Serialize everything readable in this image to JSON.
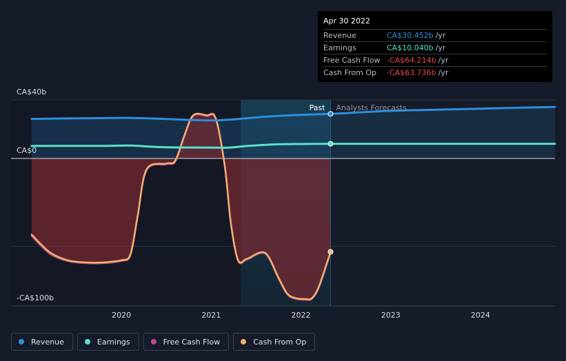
{
  "chart_data": {
    "type": "area",
    "currency_unit": "CA$ billions",
    "y_ticks": [
      {
        "value": 40,
        "label": "CA$40b"
      },
      {
        "value": 0,
        "label": "CA$0"
      },
      {
        "value": -100,
        "label": "-CA$100b"
      }
    ],
    "x_ticks": [
      {
        "value": 2020,
        "label": "2020"
      },
      {
        "value": 2021,
        "label": "2021"
      },
      {
        "value": 2022,
        "label": "2022"
      },
      {
        "value": 2023,
        "label": "2023"
      },
      {
        "value": 2024,
        "label": "2024"
      }
    ],
    "xlim": [
      2018.77,
      2024.83
    ],
    "ylim": [
      -100,
      40
    ],
    "grid": true,
    "past_label": "Past",
    "forecast_label": "Analysts Forecasts",
    "past_end": 2022.33,
    "shade_start": 2021.33,
    "series": [
      {
        "name": "Revenue",
        "color": "#2d8fdc",
        "x": [
          2019.0,
          2019.3,
          2019.6,
          2019.9,
          2020.1,
          2020.4,
          2020.7,
          2021.0,
          2021.2,
          2021.4,
          2021.6,
          2021.9,
          2022.1,
          2022.33
        ],
        "y": [
          27,
          27.3,
          27.5,
          27.6,
          27.7,
          27.2,
          26.5,
          26,
          26.5,
          27.5,
          28.5,
          29.5,
          30,
          30.452
        ]
      },
      {
        "name": "Earnings",
        "color": "#5be0cc",
        "x": [
          2019.0,
          2019.4,
          2019.8,
          2020.1,
          2020.4,
          2020.7,
          2021.0,
          2021.2,
          2021.4,
          2021.7,
          2022.0,
          2022.33
        ],
        "y": [
          8.5,
          8.6,
          8.6,
          8.8,
          7.8,
          7.5,
          7.4,
          7.4,
          8.5,
          9.6,
          9.9,
          10.04
        ]
      },
      {
        "name": "Free Cash Flow",
        "color": "#c04a8a",
        "x": [
          2019.0,
          2019.2,
          2019.4,
          2019.6,
          2019.8,
          2020.0,
          2020.1,
          2020.18,
          2020.28,
          2020.5,
          2020.6,
          2020.7,
          2020.8,
          2020.95,
          2021.05,
          2021.15,
          2021.22,
          2021.3,
          2021.4,
          2021.6,
          2021.75,
          2021.85,
          2021.95,
          2022.05,
          2022.12,
          2022.2,
          2022.33
        ],
        "y": [
          -53,
          -65,
          -70,
          -71.5,
          -71.5,
          -70,
          -66,
          -40,
          -8,
          -4,
          -2,
          15,
          29,
          29,
          27,
          -5,
          -45,
          -70,
          -69,
          -65,
          -82,
          -93,
          -96,
          -96.5,
          -96,
          -88,
          -64.214
        ]
      },
      {
        "name": "Cash From Op",
        "color": "#f0b070",
        "x": [
          2019.0,
          2019.2,
          2019.4,
          2019.6,
          2019.8,
          2020.0,
          2020.1,
          2020.18,
          2020.28,
          2020.5,
          2020.6,
          2020.7,
          2020.8,
          2020.95,
          2021.05,
          2021.15,
          2021.22,
          2021.3,
          2021.4,
          2021.6,
          2021.75,
          2021.85,
          2021.95,
          2022.05,
          2022.12,
          2022.2,
          2022.33
        ],
        "y": [
          -52,
          -64,
          -69.5,
          -71,
          -71,
          -69.5,
          -65.5,
          -39.5,
          -7.5,
          -3.5,
          -1.5,
          15.5,
          29.5,
          29.5,
          27.5,
          -4.5,
          -44.5,
          -69.5,
          -68.5,
          -64.5,
          -81.5,
          -92.5,
          -95.5,
          -96,
          -95.5,
          -87.5,
          -63.736
        ]
      },
      {
        "name": "Revenue Forecast",
        "color": "#2d8fdc",
        "x": [
          2022.33,
          2023.0,
          2023.5,
          2024.0,
          2024.5,
          2024.83
        ],
        "y": [
          30.452,
          32.5,
          33.3,
          34,
          34.8,
          35.2
        ]
      },
      {
        "name": "Earnings Forecast",
        "color": "#5be0cc",
        "x": [
          2022.33,
          2023.0,
          2024.0,
          2024.83
        ],
        "y": [
          10.04,
          10.04,
          10.0,
          10.0
        ]
      }
    ]
  },
  "tooltip": {
    "date": "Apr 30 2022",
    "unit": "/yr",
    "rows": [
      {
        "label": "Revenue",
        "value": "CA$30.452b",
        "color": "#2d8fdc"
      },
      {
        "label": "Earnings",
        "value": "CA$10.040b",
        "color": "#5be0cc"
      },
      {
        "label": "Free Cash Flow",
        "value": "-CA$64.214b",
        "color": "#e84a4a"
      },
      {
        "label": "Cash From Op",
        "value": "-CA$63.736b",
        "color": "#e84a4a"
      }
    ]
  },
  "legend": [
    {
      "label": "Revenue",
      "color": "#2d8fdc"
    },
    {
      "label": "Earnings",
      "color": "#5be0cc"
    },
    {
      "label": "Free Cash Flow",
      "color": "#c04a8a"
    },
    {
      "label": "Cash From Op",
      "color": "#f0b070"
    }
  ]
}
